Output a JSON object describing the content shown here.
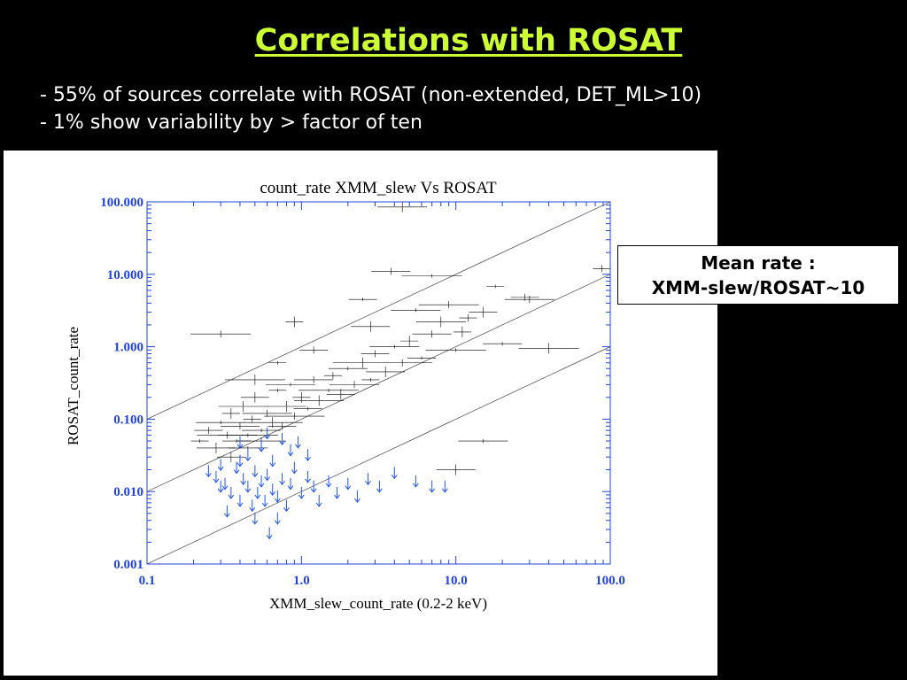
{
  "slide": {
    "title": "Correlations with ROSAT",
    "bullets": [
      "- 55% of sources correlate with ROSAT (non-extended, DET_ML>10)",
      "- 1% show variability by > factor of ten"
    ],
    "callout": {
      "line1": "Mean rate :",
      "line2": "XMM-slew/ROSAT~10"
    }
  },
  "colors": {
    "title": "#ccff33",
    "axis": "#2244dd",
    "detections": "#000000",
    "upper_limits": "#2255ee",
    "background": "#000000"
  },
  "chart_data": {
    "type": "scatter",
    "title": "count_rate XMM_slew Vs ROSAT",
    "xlabel": "XMM_slew_count_rate (0.2-2 keV)",
    "ylabel": "ROSAT_count_rate",
    "xscale": "log",
    "yscale": "log",
    "xlim": [
      0.1,
      100.0
    ],
    "ylim": [
      0.001,
      100.0
    ],
    "xticks": [
      "0.1",
      "1.0",
      "10.0",
      "100.0"
    ],
    "yticks": [
      "0.001",
      "0.010",
      "0.100",
      "1.000",
      "10.000",
      "100.000"
    ],
    "grid": false,
    "reference_lines": [
      {
        "ratio": 1
      },
      {
        "ratio": 10
      },
      {
        "ratio": 100
      }
    ],
    "series": [
      {
        "marker": "error-cross",
        "points": [
          [
            0.22,
            0.05
          ],
          [
            0.25,
            0.07
          ],
          [
            0.28,
            0.04
          ],
          [
            0.3,
            0.09
          ],
          [
            0.33,
            0.06
          ],
          [
            0.35,
            0.12
          ],
          [
            0.38,
            0.05
          ],
          [
            0.4,
            0.08
          ],
          [
            0.42,
            0.15
          ],
          [
            0.45,
            0.06
          ],
          [
            0.48,
            0.1
          ],
          [
            0.5,
            0.2
          ],
          [
            0.55,
            0.07
          ],
          [
            0.6,
            0.12
          ],
          [
            0.65,
            0.09
          ],
          [
            0.7,
            0.25
          ],
          [
            0.75,
            0.08
          ],
          [
            0.8,
            0.15
          ],
          [
            0.85,
            0.3
          ],
          [
            0.9,
            0.11
          ],
          [
            1.0,
            0.2
          ],
          [
            1.1,
            0.14
          ],
          [
            1.2,
            0.35
          ],
          [
            1.3,
            0.18
          ],
          [
            1.5,
            0.25
          ],
          [
            1.6,
            0.4
          ],
          [
            1.8,
            0.22
          ],
          [
            2.0,
            0.5
          ],
          [
            2.2,
            0.3
          ],
          [
            2.5,
            0.6
          ],
          [
            2.8,
            0.35
          ],
          [
            3.0,
            0.8
          ],
          [
            3.5,
            0.45
          ],
          [
            4.0,
            1.0
          ],
          [
            4.5,
            0.6
          ],
          [
            5.0,
            1.2
          ],
          [
            6.0,
            0.7
          ],
          [
            7.0,
            1.5
          ],
          [
            8.0,
            2.2
          ],
          [
            10.0,
            0.9
          ],
          [
            12.0,
            2.5
          ],
          [
            15.0,
            3.0
          ],
          [
            20.0,
            1.1
          ],
          [
            30.0,
            4.5
          ],
          [
            40.0,
            0.95
          ],
          [
            18.0,
            6.8
          ],
          [
            28.0,
            4.8
          ],
          [
            10.0,
            0.02
          ],
          [
            15.0,
            0.05
          ],
          [
            0.3,
            1.5
          ],
          [
            0.9,
            2.2
          ],
          [
            2.5,
            4.5
          ],
          [
            3.8,
            11.0
          ],
          [
            4.5,
            85.0
          ],
          [
            7.0,
            9.5
          ],
          [
            88.0,
            12.0
          ],
          [
            0.35,
            0.03
          ],
          [
            0.45,
            0.04
          ],
          [
            0.55,
            0.05
          ],
          [
            0.5,
            0.35
          ],
          [
            0.7,
            0.6
          ],
          [
            1.2,
            0.9
          ],
          [
            2.8,
            1.9
          ],
          [
            5.5,
            3.2
          ],
          [
            9.0,
            3.8
          ],
          [
            11.0,
            1.6
          ]
        ]
      },
      {
        "marker": "upper-limit-arrow",
        "points": [
          [
            0.25,
            0.018
          ],
          [
            0.28,
            0.015
          ],
          [
            0.3,
            0.022
          ],
          [
            0.32,
            0.012
          ],
          [
            0.35,
            0.009
          ],
          [
            0.38,
            0.02
          ],
          [
            0.4,
            0.007
          ],
          [
            0.42,
            0.014
          ],
          [
            0.45,
            0.011
          ],
          [
            0.48,
            0.006
          ],
          [
            0.5,
            0.018
          ],
          [
            0.52,
            0.009
          ],
          [
            0.55,
            0.013
          ],
          [
            0.58,
            0.007
          ],
          [
            0.6,
            0.016
          ],
          [
            0.65,
            0.01
          ],
          [
            0.7,
            0.008
          ],
          [
            0.75,
            0.014
          ],
          [
            0.8,
            0.006
          ],
          [
            0.85,
            0.012
          ],
          [
            0.9,
            0.02
          ],
          [
            1.0,
            0.009
          ],
          [
            1.1,
            0.015
          ],
          [
            1.2,
            0.011
          ],
          [
            1.3,
            0.007
          ],
          [
            1.5,
            0.013
          ],
          [
            1.7,
            0.009
          ],
          [
            2.0,
            0.012
          ],
          [
            2.3,
            0.008
          ],
          [
            2.7,
            0.014
          ],
          [
            3.2,
            0.011
          ],
          [
            4.0,
            0.017
          ],
          [
            5.5,
            0.013
          ],
          [
            7.0,
            0.011
          ],
          [
            8.5,
            0.011
          ],
          [
            0.45,
            0.03
          ],
          [
            0.55,
            0.04
          ],
          [
            0.65,
            0.025
          ],
          [
            0.75,
            0.05
          ],
          [
            0.85,
            0.035
          ],
          [
            0.95,
            0.045
          ],
          [
            1.1,
            0.03
          ],
          [
            0.4,
            0.045
          ],
          [
            0.6,
            0.06
          ],
          [
            0.7,
            0.004
          ],
          [
            0.33,
            0.005
          ],
          [
            0.5,
            0.004
          ],
          [
            0.62,
            0.0025
          ],
          [
            0.3,
            0.011
          ],
          [
            0.4,
            0.025
          ]
        ]
      }
    ]
  }
}
